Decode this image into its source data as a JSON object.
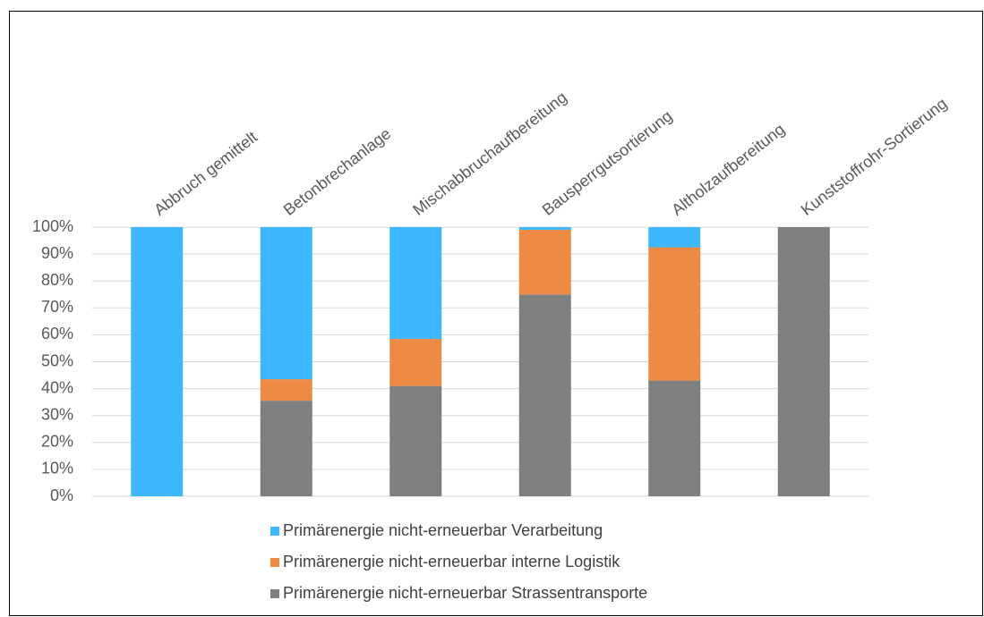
{
  "chart_data": {
    "type": "stacked_bar",
    "categories": [
      "Abbruch gemittelt",
      "Betonbrechanlage",
      "Mischabbruchaufbereitung",
      "Bausperrgutsortierung",
      "Altholzaufbereitung",
      "Kunststoffrohr-Sortierung"
    ],
    "series": [
      {
        "name": "Primärenergie nicht-erneuerbar Verarbeitung",
        "color": "#3db7ff",
        "values": [
          100,
          56.5,
          41.5,
          1,
          7.5,
          0
        ]
      },
      {
        "name": "Primärenergie nicht-erneuerbar interne Logistik",
        "color": "#ed8b45",
        "values": [
          0,
          8,
          17.5,
          24,
          49.5,
          0
        ]
      },
      {
        "name": "Primärenergie nicht-erneuerbar Strassentransporte",
        "color": "#7f7f7f",
        "values": [
          0,
          35.5,
          41,
          75,
          43,
          100
        ]
      }
    ],
    "ylim": [
      0,
      100
    ],
    "yticks": [
      {
        "value": 0,
        "label": "0%"
      },
      {
        "value": 10,
        "label": "10%"
      },
      {
        "value": 20,
        "label": "20%"
      },
      {
        "value": 30,
        "label": "30%"
      },
      {
        "value": 40,
        "label": "40%"
      },
      {
        "value": 50,
        "label": "50%"
      },
      {
        "value": 60,
        "label": "60%"
      },
      {
        "value": 70,
        "label": "70%"
      },
      {
        "value": 80,
        "label": "80%"
      },
      {
        "value": 90,
        "label": "90%"
      },
      {
        "value": 100,
        "label": "100%"
      }
    ],
    "grid": true,
    "legend": "bottom"
  }
}
